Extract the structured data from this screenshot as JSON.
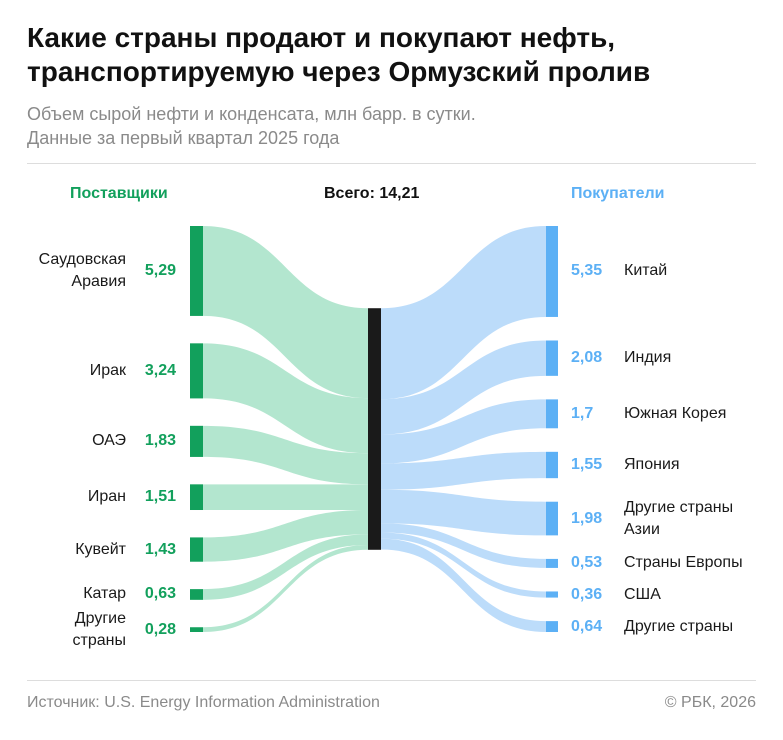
{
  "chart_data": {
    "type": "sankey",
    "title": [
      "Какие страны продают и покупают нефть,",
      "транспортируемую через Ормузский пролив"
    ],
    "subtitle": [
      "Объем сырой нефти и конденсата, млн барр. в сутки.",
      "Данные за первый квартал 2025 года"
    ],
    "total": 14.21,
    "total_label": "Всего: 14,21",
    "total_color": "#1a1a1a",
    "sources": {
      "name": "Поставщики",
      "color": "#12a05c",
      "flow_color": "#b3e6cf",
      "categories": [
        "Саудовская Аравия",
        "Ирак",
        "ОАЭ",
        "Иран",
        "Кувейт",
        "Катар",
        "Другие страны"
      ],
      "values": [
        5.29,
        3.24,
        1.83,
        1.51,
        1.43,
        0.63,
        0.28
      ],
      "value_labels": [
        "5,29",
        "3,24",
        "1,83",
        "1,51",
        "1,43",
        "0,63",
        "0,28"
      ]
    },
    "targets": {
      "name": "Покупатели",
      "color": "#5cb0f5",
      "flow_color": "#bcdcfa",
      "categories": [
        "Китай",
        "Индия",
        "Южная Корея",
        "Япония",
        "Другие страны Азии",
        "Страны Европы",
        "США",
        "Другие страны"
      ],
      "values": [
        5.35,
        2.08,
        1.7,
        1.55,
        1.98,
        0.53,
        0.36,
        0.64
      ],
      "value_labels": [
        "5,35",
        "2,08",
        "1,7",
        "1,55",
        "1,98",
        "0,53",
        "0,36",
        "0,64"
      ]
    },
    "source": "Источник: U.S. Energy Information Administration",
    "copyright": "© РБК, 2026"
  }
}
